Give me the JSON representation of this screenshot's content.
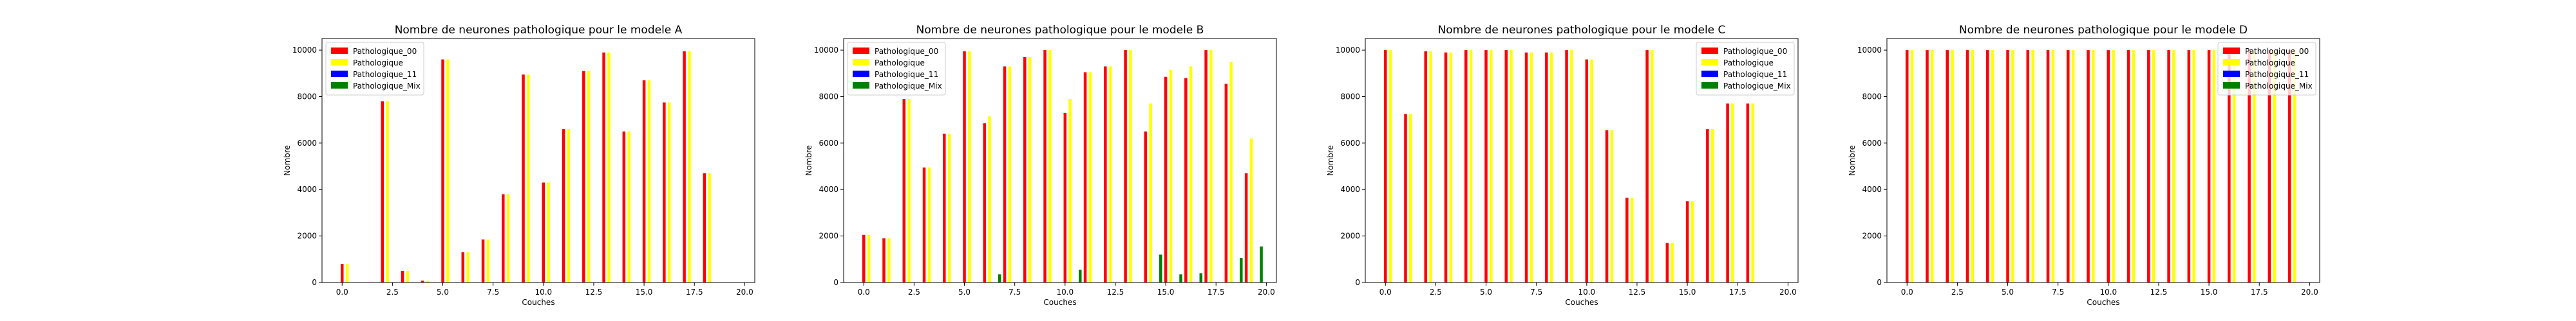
{
  "figure": {
    "background": "#ffffff"
  },
  "chart_data": [
    {
      "type": "bar",
      "title": "Nombre de neurones pathologique pour le modele A",
      "xlabel": "Couches",
      "ylabel": "Nombre",
      "xlim": [
        -1,
        20.5
      ],
      "ylim": [
        0,
        10500
      ],
      "xticks": [
        "0.0",
        "2.5",
        "5.0",
        "7.5",
        "10.0",
        "12.5",
        "15.0",
        "17.5",
        "20.0"
      ],
      "yticks": [
        "0",
        "2000",
        "4000",
        "6000",
        "8000",
        "10000"
      ],
      "legend_position": "top-left",
      "grid": false,
      "x": [
        0,
        1,
        2,
        3,
        4,
        5,
        6,
        7,
        8,
        9,
        10,
        11,
        12,
        13,
        14,
        15,
        16,
        17,
        18,
        19
      ],
      "series": [
        {
          "name": "Pathologique_00",
          "color": "#ff0000",
          "offset": 0,
          "values": [
            800,
            0,
            7800,
            500,
            80,
            9600,
            1300,
            1850,
            3800,
            8950,
            4300,
            6600,
            9100,
            9900,
            6500,
            8700,
            7750,
            9950,
            4700,
            0
          ]
        },
        {
          "name": "Pathologique",
          "color": "#ffff00",
          "offset": 0.25,
          "values": [
            800,
            0,
            7800,
            500,
            80,
            9600,
            1300,
            1850,
            3800,
            8950,
            4300,
            6600,
            9100,
            9900,
            6500,
            8700,
            7750,
            9950,
            4700,
            0
          ]
        },
        {
          "name": "Pathologique_11",
          "color": "#0000ff",
          "offset": 0.5,
          "values": [
            0,
            0,
            0,
            0,
            0,
            0,
            0,
            0,
            0,
            0,
            0,
            0,
            0,
            0,
            0,
            0,
            0,
            0,
            0,
            0
          ]
        },
        {
          "name": "Pathologique_Mix",
          "color": "#008000",
          "offset": 0.75,
          "values": [
            0,
            0,
            0,
            0,
            0,
            0,
            0,
            0,
            0,
            0,
            0,
            0,
            0,
            0,
            0,
            0,
            0,
            0,
            0,
            0
          ]
        }
      ]
    },
    {
      "type": "bar",
      "title": "Nombre de neurones pathologique pour le modele B",
      "xlabel": "Couches",
      "ylabel": "Nombre",
      "xlim": [
        -1,
        20.5
      ],
      "ylim": [
        0,
        10500
      ],
      "xticks": [
        "0.0",
        "2.5",
        "5.0",
        "7.5",
        "10.0",
        "12.5",
        "15.0",
        "17.5",
        "20.0"
      ],
      "yticks": [
        "0",
        "2000",
        "4000",
        "6000",
        "8000",
        "10000"
      ],
      "legend_position": "top-left",
      "grid": false,
      "x": [
        0,
        1,
        2,
        3,
        4,
        5,
        6,
        7,
        8,
        9,
        10,
        11,
        12,
        13,
        14,
        15,
        16,
        17,
        18,
        19
      ],
      "series": [
        {
          "name": "Pathologique_00",
          "color": "#ff0000",
          "offset": 0,
          "values": [
            2050,
            1900,
            7900,
            4950,
            6400,
            9950,
            6850,
            9300,
            9700,
            10000,
            7300,
            9050,
            9300,
            10000,
            6500,
            8850,
            8800,
            10000,
            8550,
            4700
          ]
        },
        {
          "name": "Pathologique",
          "color": "#ffff00",
          "offset": 0.25,
          "values": [
            2050,
            1900,
            7900,
            4950,
            6400,
            9950,
            7150,
            9300,
            9700,
            10000,
            7900,
            9050,
            9300,
            10000,
            7700,
            9150,
            9300,
            10000,
            9500,
            6200
          ]
        },
        {
          "name": "Pathologique_11",
          "color": "#0000ff",
          "offset": 0.5,
          "values": [
            0,
            0,
            0,
            0,
            0,
            0,
            0,
            0,
            0,
            0,
            0,
            0,
            0,
            0,
            0,
            0,
            0,
            0,
            0,
            0
          ]
        },
        {
          "name": "Pathologique_Mix",
          "color": "#008000",
          "offset": 0.75,
          "values": [
            0,
            0,
            0,
            0,
            0,
            0,
            350,
            0,
            0,
            0,
            550,
            0,
            0,
            0,
            1200,
            350,
            400,
            0,
            1050,
            1550
          ]
        }
      ]
    },
    {
      "type": "bar",
      "title": "Nombre de neurones pathologique pour le modele C",
      "xlabel": "Couches",
      "ylabel": "Nombre",
      "xlim": [
        -1,
        20.5
      ],
      "ylim": [
        0,
        10500
      ],
      "xticks": [
        "0.0",
        "2.5",
        "5.0",
        "7.5",
        "10.0",
        "12.5",
        "15.0",
        "17.5",
        "20.0"
      ],
      "yticks": [
        "0",
        "2000",
        "4000",
        "6000",
        "8000",
        "10000"
      ],
      "legend_position": "top-right",
      "grid": false,
      "x": [
        0,
        1,
        2,
        3,
        4,
        5,
        6,
        7,
        8,
        9,
        10,
        11,
        12,
        13,
        14,
        15,
        16,
        17,
        18,
        19
      ],
      "series": [
        {
          "name": "Pathologique_00",
          "color": "#ff0000",
          "offset": 0,
          "values": [
            10000,
            7250,
            9950,
            9900,
            10000,
            10000,
            10000,
            9900,
            9900,
            10000,
            9600,
            6550,
            3650,
            10000,
            1700,
            3500,
            6600,
            7700,
            7700,
            0
          ]
        },
        {
          "name": "Pathologique",
          "color": "#ffff00",
          "offset": 0.25,
          "values": [
            10000,
            7250,
            9950,
            9900,
            10000,
            10000,
            10000,
            9900,
            9900,
            10000,
            9600,
            6550,
            3650,
            10000,
            1700,
            3500,
            6600,
            7700,
            7700,
            0
          ]
        },
        {
          "name": "Pathologique_11",
          "color": "#0000ff",
          "offset": 0.5,
          "values": [
            0,
            0,
            0,
            0,
            0,
            0,
            0,
            0,
            0,
            0,
            0,
            0,
            0,
            0,
            0,
            0,
            0,
            0,
            0,
            0
          ]
        },
        {
          "name": "Pathologique_Mix",
          "color": "#008000",
          "offset": 0.75,
          "values": [
            0,
            0,
            0,
            0,
            0,
            0,
            0,
            0,
            0,
            0,
            0,
            0,
            0,
            0,
            0,
            0,
            0,
            0,
            0,
            0
          ]
        }
      ]
    },
    {
      "type": "bar",
      "title": "Nombre de neurones pathologique pour le modele D",
      "xlabel": "Couches",
      "ylabel": "Nombre",
      "xlim": [
        -1,
        20.5
      ],
      "ylim": [
        0,
        10500
      ],
      "xticks": [
        "0.0",
        "2.5",
        "5.0",
        "7.5",
        "10.0",
        "12.5",
        "15.0",
        "17.5",
        "20.0"
      ],
      "yticks": [
        "0",
        "2000",
        "4000",
        "6000",
        "8000",
        "10000"
      ],
      "legend_position": "top-right",
      "grid": false,
      "x": [
        0,
        1,
        2,
        3,
        4,
        5,
        6,
        7,
        8,
        9,
        10,
        11,
        12,
        13,
        14,
        15,
        16,
        17,
        18,
        19
      ],
      "series": [
        {
          "name": "Pathologique_00",
          "color": "#ff0000",
          "offset": 0,
          "values": [
            10000,
            10000,
            10000,
            10000,
            10000,
            10000,
            10000,
            10000,
            10000,
            10000,
            10000,
            10000,
            10000,
            10000,
            10000,
            10000,
            10000,
            10000,
            10000,
            10000
          ]
        },
        {
          "name": "Pathologique",
          "color": "#ffff00",
          "offset": 0.25,
          "values": [
            10000,
            10000,
            10000,
            10000,
            10000,
            10000,
            10000,
            10000,
            10000,
            10000,
            10000,
            10000,
            10000,
            10000,
            10000,
            10000,
            10000,
            10000,
            10000,
            10000
          ]
        },
        {
          "name": "Pathologique_11",
          "color": "#0000ff",
          "offset": 0.5,
          "values": [
            0,
            0,
            0,
            0,
            0,
            0,
            0,
            0,
            0,
            0,
            0,
            0,
            0,
            0,
            0,
            0,
            0,
            0,
            0,
            0
          ]
        },
        {
          "name": "Pathologique_Mix",
          "color": "#008000",
          "offset": 0.75,
          "values": [
            0,
            0,
            0,
            0,
            0,
            0,
            0,
            0,
            0,
            0,
            0,
            0,
            0,
            0,
            0,
            0,
            0,
            0,
            0,
            0
          ]
        }
      ]
    }
  ]
}
